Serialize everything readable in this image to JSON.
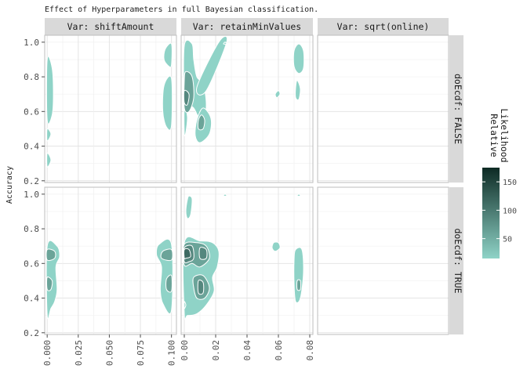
{
  "chart_data": {
    "type": "density_2d_faceted",
    "title": "Effect of Hyperparameters in full Bayesian classification.",
    "ylabel": "Accuracy",
    "column_facets": [
      "Var: shiftAmount",
      "Var: retainMinValues",
      "Var: sqrt(online)"
    ],
    "row_facets": [
      "doEcdf: FALSE",
      "doEcdf: TRUE"
    ],
    "y_ticks": [
      "0.2",
      "0.4",
      "0.6",
      "0.8",
      "1.0"
    ],
    "ylim": [
      0.19,
      1.04
    ],
    "x_ticks": [
      [
        "0.000",
        "0.025",
        "0.050",
        "0.075",
        "0.100"
      ],
      [
        "0.00",
        "0.02",
        "0.04",
        "0.06",
        "0.08"
      ],
      []
    ],
    "xlim": [
      [
        -0.002,
        0.104
      ],
      [
        -0.002,
        0.082
      ],
      [
        0,
        1
      ]
    ],
    "legend": {
      "title_line1": "Relative",
      "title_line2": "Likelihood",
      "ticks": [
        "50",
        "100",
        "150"
      ],
      "tick_values": [
        50,
        100,
        150
      ],
      "range": [
        15,
        175
      ],
      "color_low": "#8fd3c7",
      "color_high": "#0d2a24"
    },
    "blobs": [
      {
        "col": 0,
        "row": 0,
        "level": 0,
        "pts": [
          [
            0.0,
            0.9
          ],
          [
            0.004,
            0.85
          ],
          [
            0.005,
            0.7
          ],
          [
            0.004,
            0.58
          ],
          [
            0.0,
            0.55
          ]
        ]
      },
      {
        "col": 0,
        "row": 0,
        "level": 0,
        "pts": [
          [
            0.0,
            0.5
          ],
          [
            0.003,
            0.47
          ],
          [
            0.0,
            0.43
          ]
        ]
      },
      {
        "col": 0,
        "row": 0,
        "level": 0,
        "pts": [
          [
            0.0,
            0.36
          ],
          [
            0.003,
            0.32
          ],
          [
            0.0,
            0.28
          ]
        ]
      },
      {
        "col": 0,
        "row": 0,
        "level": 0,
        "pts": [
          [
            0.1,
            0.99
          ],
          [
            0.095,
            0.96
          ],
          [
            0.094,
            0.9
          ],
          [
            0.098,
            0.86
          ],
          [
            0.1,
            0.87
          ]
        ]
      },
      {
        "col": 0,
        "row": 0,
        "level": 0,
        "pts": [
          [
            0.1,
            0.79
          ],
          [
            0.094,
            0.75
          ],
          [
            0.093,
            0.6
          ],
          [
            0.096,
            0.51
          ],
          [
            0.1,
            0.52
          ]
        ]
      },
      {
        "col": 1,
        "row": 0,
        "level": 0,
        "pts": [
          [
            0.0,
            0.98
          ],
          [
            0.005,
            0.99
          ],
          [
            0.006,
            0.9
          ],
          [
            0.008,
            0.8
          ],
          [
            0.012,
            0.76
          ],
          [
            0.014,
            0.65
          ],
          [
            0.013,
            0.55
          ],
          [
            0.01,
            0.55
          ],
          [
            0.006,
            0.62
          ],
          [
            0.002,
            0.64
          ],
          [
            0.0,
            0.65
          ]
        ]
      },
      {
        "col": 1,
        "row": 0,
        "level": 0,
        "pts": [
          [
            0.0,
            0.62
          ],
          [
            0.002,
            0.57
          ],
          [
            0.001,
            0.48
          ],
          [
            0.0,
            0.47
          ]
        ]
      },
      {
        "col": 1,
        "row": 0,
        "level": 0,
        "pts": [
          [
            0.008,
            0.74
          ],
          [
            0.022,
            1.0
          ],
          [
            0.027,
            1.0
          ],
          [
            0.014,
            0.72
          ]
        ]
      },
      {
        "col": 1,
        "row": 0,
        "level": 0,
        "pts": [
          [
            0.012,
            0.62
          ],
          [
            0.017,
            0.56
          ],
          [
            0.016,
            0.47
          ],
          [
            0.01,
            0.42
          ],
          [
            0.007,
            0.46
          ],
          [
            0.008,
            0.55
          ]
        ]
      },
      {
        "col": 1,
        "row": 0,
        "level": 0,
        "pts": [
          [
            0.06,
            0.72
          ],
          [
            0.061,
            0.7
          ],
          [
            0.059,
            0.68
          ],
          [
            0.058,
            0.7
          ]
        ]
      },
      {
        "col": 1,
        "row": 0,
        "level": 0,
        "pts": [
          [
            0.073,
            0.99
          ],
          [
            0.076,
            0.95
          ],
          [
            0.076,
            0.85
          ],
          [
            0.073,
            0.82
          ],
          [
            0.07,
            0.86
          ],
          [
            0.07,
            0.95
          ]
        ]
      },
      {
        "col": 1,
        "row": 0,
        "level": 0,
        "pts": [
          [
            0.072,
            0.78
          ],
          [
            0.074,
            0.73
          ],
          [
            0.073,
            0.67
          ],
          [
            0.071,
            0.68
          ],
          [
            0.071,
            0.74
          ]
        ]
      },
      {
        "col": 1,
        "row": 0,
        "level": 1,
        "pts": [
          [
            0.001,
            0.83
          ],
          [
            0.005,
            0.8
          ],
          [
            0.006,
            0.68
          ],
          [
            0.003,
            0.6
          ],
          [
            0.0,
            0.62
          ],
          [
            0.0,
            0.78
          ]
        ]
      },
      {
        "col": 1,
        "row": 0,
        "level": 2,
        "pts": [
          [
            0.0,
            0.72
          ],
          [
            0.003,
            0.7
          ],
          [
            0.002,
            0.64
          ],
          [
            0.0,
            0.65
          ]
        ]
      },
      {
        "col": 1,
        "row": 0,
        "level": 1,
        "pts": [
          [
            0.011,
            0.58
          ],
          [
            0.013,
            0.55
          ],
          [
            0.012,
            0.5
          ],
          [
            0.009,
            0.5
          ],
          [
            0.009,
            0.55
          ]
        ]
      },
      {
        "col": 1,
        "row": 0,
        "level": 0,
        "pts": [
          [
            0.026,
            1.0
          ],
          [
            0.027,
            0.99
          ],
          [
            0.025,
            0.99
          ]
        ]
      },
      {
        "col": 0,
        "row": 1,
        "level": 0,
        "pts": [
          [
            0.0,
            0.7
          ],
          [
            0.008,
            0.7
          ],
          [
            0.01,
            0.64
          ],
          [
            0.007,
            0.58
          ],
          [
            0.008,
            0.45
          ],
          [
            0.006,
            0.38
          ],
          [
            0.003,
            0.34
          ],
          [
            0.0,
            0.3
          ]
        ]
      },
      {
        "col": 0,
        "row": 1,
        "level": 1,
        "pts": [
          [
            0.0,
            0.68
          ],
          [
            0.006,
            0.67
          ],
          [
            0.006,
            0.63
          ],
          [
            0.0,
            0.62
          ]
        ]
      },
      {
        "col": 0,
        "row": 1,
        "level": 1,
        "pts": [
          [
            0.0,
            0.52
          ],
          [
            0.004,
            0.5
          ],
          [
            0.003,
            0.45
          ],
          [
            0.0,
            0.45
          ]
        ]
      },
      {
        "col": 0,
        "row": 1,
        "level": 0,
        "pts": [
          [
            0.1,
            0.71
          ],
          [
            0.09,
            0.71
          ],
          [
            0.088,
            0.65
          ],
          [
            0.092,
            0.58
          ],
          [
            0.091,
            0.45
          ],
          [
            0.093,
            0.37
          ],
          [
            0.1,
            0.33
          ]
        ]
      },
      {
        "col": 0,
        "row": 1,
        "level": 1,
        "pts": [
          [
            0.1,
            0.68
          ],
          [
            0.093,
            0.67
          ],
          [
            0.092,
            0.63
          ],
          [
            0.1,
            0.62
          ]
        ]
      },
      {
        "col": 0,
        "row": 1,
        "level": 1,
        "pts": [
          [
            0.1,
            0.53
          ],
          [
            0.096,
            0.51
          ],
          [
            0.096,
            0.45
          ],
          [
            0.1,
            0.44
          ]
        ]
      },
      {
        "col": 1,
        "row": 1,
        "level": 0,
        "pts": [
          [
            0.0,
            0.72
          ],
          [
            0.01,
            0.73
          ],
          [
            0.018,
            0.72
          ],
          [
            0.022,
            0.67
          ],
          [
            0.021,
            0.58
          ],
          [
            0.018,
            0.52
          ],
          [
            0.019,
            0.44
          ],
          [
            0.014,
            0.36
          ],
          [
            0.008,
            0.31
          ],
          [
            0.002,
            0.3
          ],
          [
            0.0,
            0.31
          ]
        ]
      },
      {
        "col": 1,
        "row": 1,
        "level": 1,
        "pts": [
          [
            0.0,
            0.71
          ],
          [
            0.008,
            0.72
          ],
          [
            0.014,
            0.7
          ],
          [
            0.016,
            0.63
          ],
          [
            0.01,
            0.58
          ],
          [
            0.005,
            0.6
          ],
          [
            0.0,
            0.59
          ]
        ]
      },
      {
        "col": 1,
        "row": 1,
        "level": 1,
        "pts": [
          [
            0.006,
            0.52
          ],
          [
            0.012,
            0.53
          ],
          [
            0.016,
            0.46
          ],
          [
            0.013,
            0.4
          ],
          [
            0.008,
            0.4
          ],
          [
            0.006,
            0.46
          ]
        ]
      },
      {
        "col": 1,
        "row": 1,
        "level": 2,
        "pts": [
          [
            0.0,
            0.69
          ],
          [
            0.005,
            0.7
          ],
          [
            0.006,
            0.63
          ],
          [
            0.003,
            0.61
          ],
          [
            0.0,
            0.61
          ]
        ]
      },
      {
        "col": 1,
        "row": 1,
        "level": 2,
        "pts": [
          [
            0.01,
            0.69
          ],
          [
            0.014,
            0.68
          ],
          [
            0.014,
            0.63
          ],
          [
            0.01,
            0.63
          ]
        ]
      },
      {
        "col": 1,
        "row": 1,
        "level": 3,
        "pts": [
          [
            0.0,
            0.68
          ],
          [
            0.003,
            0.68
          ],
          [
            0.004,
            0.64
          ],
          [
            0.001,
            0.63
          ],
          [
            0.0,
            0.63
          ]
        ]
      },
      {
        "col": 1,
        "row": 1,
        "level": 2,
        "pts": [
          [
            0.009,
            0.5
          ],
          [
            0.012,
            0.49
          ],
          [
            0.012,
            0.43
          ],
          [
            0.009,
            0.43
          ]
        ]
      },
      {
        "col": 1,
        "row": 1,
        "level": 0,
        "pts": [
          [
            0.003,
            0.99
          ],
          [
            0.005,
            0.97
          ],
          [
            0.004,
            0.88
          ],
          [
            0.002,
            0.86
          ],
          [
            0.001,
            0.9
          ],
          [
            0.002,
            0.97
          ]
        ]
      },
      {
        "col": 1,
        "row": 1,
        "level": 0,
        "pts": [
          [
            0.0,
            0.38
          ],
          [
            0.001,
            0.36
          ],
          [
            0.0,
            0.34
          ]
        ]
      },
      {
        "col": 1,
        "row": 1,
        "level": 0,
        "pts": [
          [
            0.057,
            0.72
          ],
          [
            0.06,
            0.72
          ],
          [
            0.061,
            0.69
          ],
          [
            0.058,
            0.67
          ],
          [
            0.056,
            0.69
          ]
        ]
      },
      {
        "col": 1,
        "row": 1,
        "level": 0,
        "pts": [
          [
            0.071,
            0.68
          ],
          [
            0.075,
            0.68
          ],
          [
            0.076,
            0.55
          ],
          [
            0.074,
            0.4
          ],
          [
            0.071,
            0.38
          ],
          [
            0.07,
            0.48
          ],
          [
            0.07,
            0.62
          ]
        ]
      },
      {
        "col": 1,
        "row": 1,
        "level": 1,
        "pts": [
          [
            0.072,
            0.5
          ],
          [
            0.074,
            0.5
          ],
          [
            0.074,
            0.45
          ],
          [
            0.072,
            0.45
          ]
        ]
      },
      {
        "col": 1,
        "row": 1,
        "level": 0,
        "pts": [
          [
            0.073,
            1.0
          ],
          [
            0.074,
            0.99
          ],
          [
            0.072,
            0.99
          ]
        ]
      },
      {
        "col": 1,
        "row": 1,
        "level": 0,
        "pts": [
          [
            0.026,
            1.0
          ],
          [
            0.027,
            0.99
          ],
          [
            0.025,
            0.99
          ]
        ]
      }
    ]
  }
}
